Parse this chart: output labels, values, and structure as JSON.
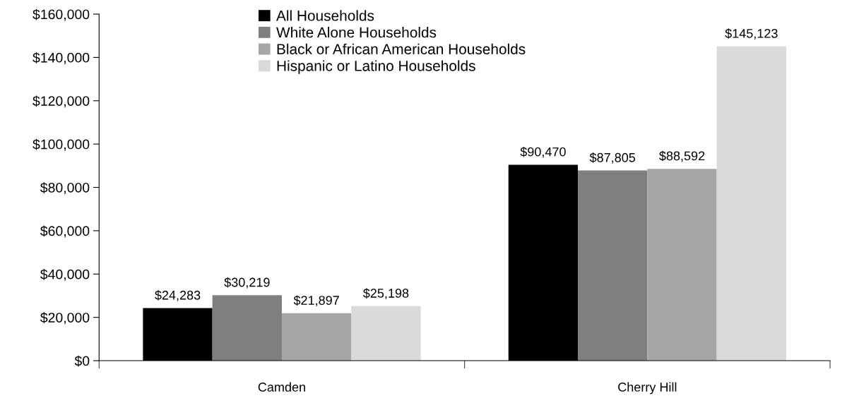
{
  "chart_data": {
    "type": "bar",
    "categories": [
      "Camden",
      "Cherry Hill"
    ],
    "series": [
      {
        "name": "All Households",
        "color": "#000000",
        "values": [
          24283,
          90470
        ],
        "value_labels": [
          "$24,283",
          "$90,470"
        ]
      },
      {
        "name": "White Alone Households",
        "color": "#7f7f7f",
        "values": [
          30219,
          87805
        ],
        "value_labels": [
          "$30,219",
          "$87,805"
        ]
      },
      {
        "name": "Black or African American Households",
        "color": "#a6a6a6",
        "values": [
          21897,
          88592
        ],
        "value_labels": [
          "$21,897",
          "$88,592"
        ]
      },
      {
        "name": "Hispanic or Latino Households",
        "color": "#d9d9d9",
        "values": [
          25198,
          145123
        ],
        "value_labels": [
          "$25,198",
          "$145,123"
        ]
      }
    ],
    "ylim": [
      0,
      160000
    ],
    "yticks": [
      {
        "value": 0,
        "label": "$0"
      },
      {
        "value": 20000,
        "label": "$20,000"
      },
      {
        "value": 40000,
        "label": "$40,000"
      },
      {
        "value": 60000,
        "label": "$60,000"
      },
      {
        "value": 80000,
        "label": "$80,000"
      },
      {
        "value": 100000,
        "label": "$100,000"
      },
      {
        "value": 120000,
        "label": "$120,000"
      },
      {
        "value": 140000,
        "label": "$140,000"
      },
      {
        "value": 160000,
        "label": "$160,000"
      }
    ],
    "grid": false,
    "legend": "top"
  }
}
